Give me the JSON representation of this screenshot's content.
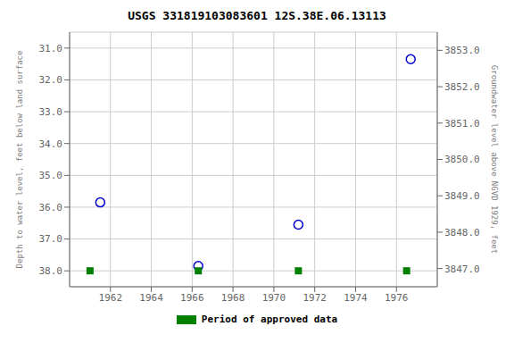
{
  "chart_data": {
    "type": "scatter",
    "title": "USGS 331819103083601 12S.38E.06.13113",
    "ylabel": "Depth to water level, feet below land surface",
    "y2label": "Groundwater level above NGVD 1929, feet",
    "xlim": [
      1960.0,
      1978.0
    ],
    "xticks": [
      1962,
      1964,
      1966,
      1968,
      1970,
      1972,
      1974,
      1976
    ],
    "ylim": [
      38.5,
      30.5
    ],
    "yticks": [
      {
        "value": 31.0,
        "label": "31.0"
      },
      {
        "value": 32.0,
        "label": "32.0"
      },
      {
        "value": 33.0,
        "label": "33.0"
      },
      {
        "value": 34.0,
        "label": "34.0"
      },
      {
        "value": 35.0,
        "label": "35.0"
      },
      {
        "value": 36.0,
        "label": "36.0"
      },
      {
        "value": 37.0,
        "label": "37.0"
      },
      {
        "value": 38.0,
        "label": "38.0"
      }
    ],
    "y2lim": [
      3846.5,
      3853.5
    ],
    "y2ticks": [
      {
        "value": 3847.0,
        "label": "3847.0"
      },
      {
        "value": 3848.0,
        "label": "3848.0"
      },
      {
        "value": 3849.0,
        "label": "3849.0"
      },
      {
        "value": 3850.0,
        "label": "3850.0"
      },
      {
        "value": 3851.0,
        "label": "3851.0"
      },
      {
        "value": 3852.0,
        "label": "3852.0"
      },
      {
        "value": 3853.0,
        "label": "3853.0"
      }
    ],
    "grid": true,
    "legend": "bottom",
    "series": [
      {
        "x": [
          1961.5,
          1966.3,
          1971.2,
          1976.7
        ],
        "values": [
          35.85,
          37.85,
          36.55,
          31.35
        ],
        "color": "#0000cc",
        "marker": "circle"
      },
      {
        "name": "Period of approved data",
        "x": [
          1961.0,
          1966.3,
          1971.2,
          1976.5
        ],
        "values": [
          38.0,
          38.0,
          38.0,
          38.0
        ],
        "color": "#008000",
        "marker": "square"
      }
    ]
  }
}
